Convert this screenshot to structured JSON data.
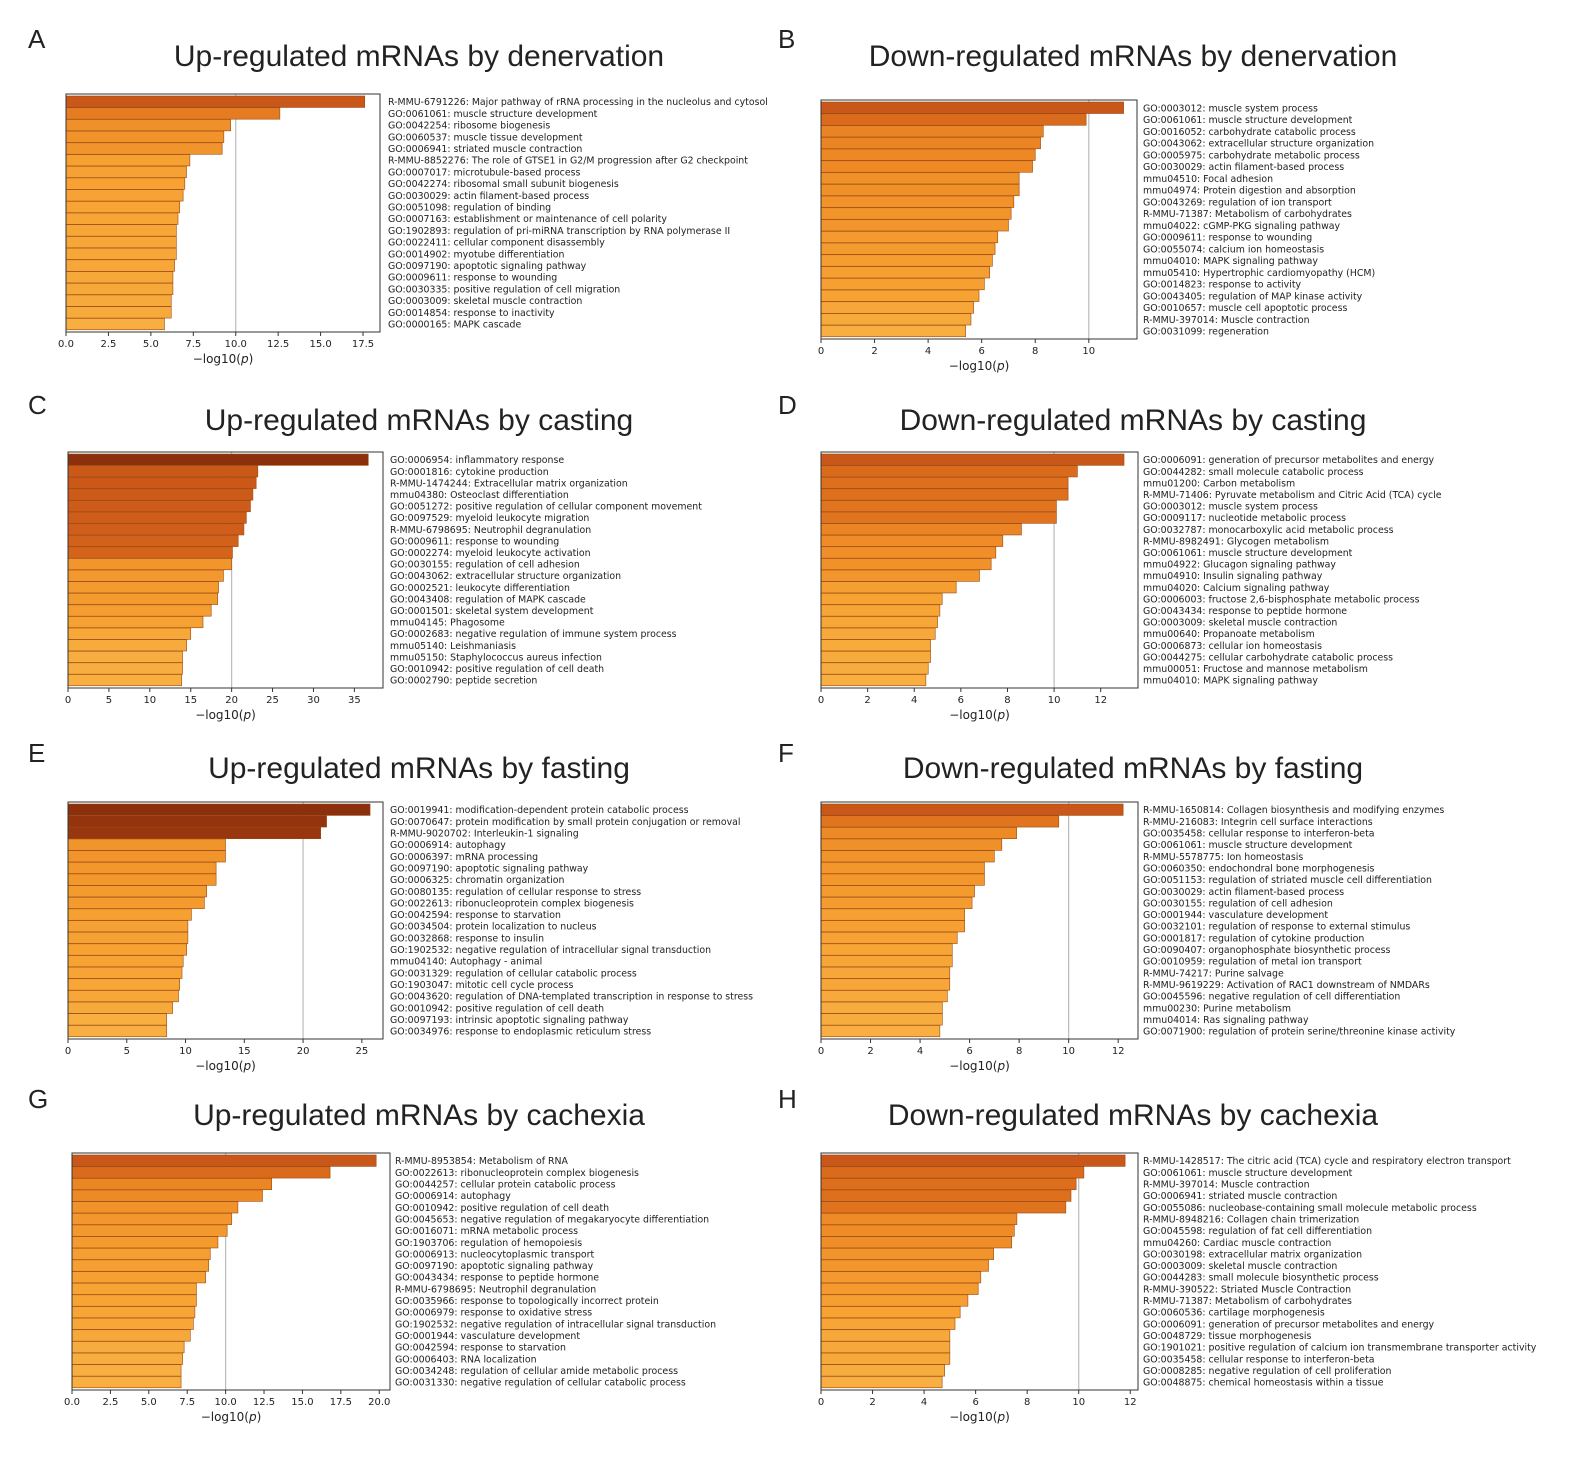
{
  "chart_data": [
    {
      "type": "bar",
      "panel_letter": "A",
      "title": "Up-regulated mRNAs by denervation",
      "xlabel_prefix": "−log10(",
      "xlabel_var": "p",
      "xlabel_suffix": ")",
      "xlim": [
        0,
        18.5
      ],
      "xticks": [
        "0.0",
        "2.5",
        "5.0",
        "7.5",
        "10.0",
        "12.5",
        "15.0",
        "17.5"
      ],
      "xtick_values": [
        0,
        2.5,
        5,
        7.5,
        10,
        12.5,
        15,
        17.5
      ],
      "reference_line": 10,
      "categories": [
        "R-MMU-6791226: Major pathway of rRNA processing in the nucleolus and cytosol",
        "GO:0061061: muscle structure development",
        "GO:0042254: ribosome biogenesis",
        "GO:0060537: muscle tissue development",
        "GO:0006941: striated muscle contraction",
        "R-MMU-8852276: The role of GTSE1 in G2/M progression after G2 checkpoint",
        "GO:0007017: microtubule-based process",
        "GO:0042274: ribosomal small subunit biogenesis",
        "GO:0030029: actin filament-based process",
        "GO:0051098: regulation of binding",
        "GO:0007163: establishment or maintenance of cell polarity",
        "GO:1902893: regulation of pri-miRNA transcription by RNA polymerase II",
        "GO:0022411: cellular component disassembly",
        "GO:0014902: myotube differentiation",
        "GO:0097190: apoptotic signaling pathway",
        "GO:0009611: response to wounding",
        "GO:0030335: positive regulation of cell migration",
        "GO:0003009: skeletal muscle contraction",
        "GO:0014854: response to inactivity",
        "GO:0000165: MAPK cascade"
      ],
      "values": [
        17.6,
        12.6,
        9.7,
        9.3,
        9.2,
        7.3,
        7.1,
        7.0,
        6.9,
        6.7,
        6.6,
        6.5,
        6.5,
        6.5,
        6.4,
        6.3,
        6.3,
        6.2,
        6.2,
        5.8
      ]
    },
    {
      "type": "bar",
      "panel_letter": "B",
      "title": "Down-regulated mRNAs by denervation",
      "xlabel_prefix": "−log10(",
      "xlabel_var": "p",
      "xlabel_suffix": ")",
      "xlim": [
        0,
        11.8
      ],
      "xticks": [
        "0",
        "2",
        "4",
        "6",
        "8",
        "10"
      ],
      "xtick_values": [
        0,
        2,
        4,
        6,
        8,
        10
      ],
      "reference_line": 10,
      "categories": [
        "GO:0003012: muscle system process",
        "GO:0061061: muscle structure development",
        "GO:0016052: carbohydrate catabolic process",
        "GO:0043062: extracellular structure organization",
        "GO:0005975: carbohydrate metabolic process",
        "GO:0030029: actin filament-based process",
        "mmu04510: Focal adhesion",
        "mmu04974: Protein digestion and absorption",
        "GO:0043269: regulation of ion transport",
        "R-MMU-71387: Metabolism of carbohydrates",
        "mmu04022: cGMP-PKG signaling pathway",
        "GO:0009611: response to wounding",
        "GO:0055074: calcium ion homeostasis",
        "mmu04010: MAPK signaling pathway",
        "mmu05410: Hypertrophic cardiomyopathy (HCM)",
        "GO:0014823: response to activity",
        "GO:0043405: regulation of MAP kinase activity",
        "GO:0010657: muscle cell apoptotic process",
        "R-MMU-397014: Muscle contraction",
        "GO:0031099: regeneration"
      ],
      "values": [
        11.3,
        9.9,
        8.3,
        8.2,
        8.0,
        7.9,
        7.4,
        7.4,
        7.2,
        7.1,
        7.0,
        6.6,
        6.5,
        6.4,
        6.3,
        6.1,
        5.9,
        5.7,
        5.6,
        5.4
      ]
    },
    {
      "type": "bar",
      "panel_letter": "C",
      "title": "Up-regulated mRNAs by casting",
      "xlabel_prefix": "−log10(",
      "xlabel_var": "p",
      "xlabel_suffix": ")",
      "xlim": [
        0,
        38.5
      ],
      "xticks": [
        "0",
        "5",
        "10",
        "15",
        "20",
        "25",
        "30",
        "35"
      ],
      "xtick_values": [
        0,
        5,
        10,
        15,
        20,
        25,
        30,
        35
      ],
      "reference_line": 20,
      "categories": [
        "GO:0006954: inflammatory response",
        "GO:0001816: cytokine production",
        "R-MMU-1474244: Extracellular matrix organization",
        "mmu04380: Osteoclast differentiation",
        "GO:0051272: positive regulation of cellular component movement",
        "GO:0097529: myeloid leukocyte migration",
        "R-MMU-6798695: Neutrophil degranulation",
        "GO:0009611: response to wounding",
        "GO:0002274: myeloid leukocyte activation",
        "GO:0030155: regulation of cell adhesion",
        "GO:0043062: extracellular structure organization",
        "GO:0002521: leukocyte differentiation",
        "GO:0043408: regulation of MAPK cascade",
        "GO:0001501: skeletal system development",
        "mmu04145: Phagosome",
        "GO:0002683: negative regulation of immune system process",
        "mmu05140: Leishmaniasis",
        "mmu05150: Staphylococcus aureus infection",
        "GO:0010942: positive regulation of cell death",
        "GO:0002790: peptide secretion"
      ],
      "values": [
        36.7,
        23.2,
        23.0,
        22.6,
        22.3,
        21.8,
        21.5,
        20.8,
        20.1,
        20.0,
        19.0,
        18.4,
        18.3,
        17.5,
        16.5,
        15.0,
        14.5,
        14.0,
        14.0,
        13.9
      ]
    },
    {
      "type": "bar",
      "panel_letter": "D",
      "title": "Down-regulated mRNAs by casting",
      "xlabel_prefix": "−log10(",
      "xlabel_var": "p",
      "xlabel_suffix": ")",
      "xlim": [
        0,
        13.6
      ],
      "xticks": [
        "0",
        "2",
        "4",
        "6",
        "8",
        "10",
        "12"
      ],
      "xtick_values": [
        0,
        2,
        4,
        6,
        8,
        10,
        12
      ],
      "reference_line": 10,
      "categories": [
        "GO:0006091: generation of precursor metabolites and energy",
        "GO:0044282: small molecule catabolic process",
        "mmu01200: Carbon metabolism",
        "R-MMU-71406: Pyruvate metabolism and Citric Acid (TCA) cycle",
        "GO:0003012: muscle system process",
        "GO:0009117: nucleotide metabolic process",
        "GO:0032787: monocarboxylic acid metabolic process",
        "R-MMU-8982491: Glycogen metabolism",
        "GO:0061061: muscle structure development",
        "mmu04922: Glucagon signaling pathway",
        "mmu04910: Insulin signaling pathway",
        "mmu04020: Calcium signaling pathway",
        "GO:0006003: fructose 2,6-bisphosphate metabolic process",
        "GO:0043434: response to peptide hormone",
        "GO:0003009: skeletal muscle contraction",
        "mmu00640: Propanoate metabolism",
        "GO:0006873: cellular ion homeostasis",
        "GO:0044275: cellular carbohydrate catabolic process",
        "mmu00051: Fructose and mannose metabolism",
        "mmu04010: MAPK signaling pathway"
      ],
      "values": [
        13.0,
        11.0,
        10.6,
        10.6,
        10.1,
        10.1,
        8.6,
        7.8,
        7.5,
        7.3,
        6.8,
        5.8,
        5.2,
        5.1,
        5.0,
        4.9,
        4.7,
        4.7,
        4.6,
        4.5
      ]
    },
    {
      "type": "bar",
      "panel_letter": "E",
      "title": "Up-regulated mRNAs by fasting",
      "xlabel_prefix": "−log10(",
      "xlabel_var": "p",
      "xlabel_suffix": ")",
      "xlim": [
        0,
        26.8
      ],
      "xticks": [
        "0",
        "5",
        "10",
        "15",
        "20",
        "25"
      ],
      "xtick_values": [
        0,
        5,
        10,
        15,
        20,
        25
      ],
      "reference_line": 20,
      "categories": [
        "GO:0019941: modification-dependent protein catabolic process",
        "GO:0070647: protein modification by small protein conjugation or removal",
        "R-MMU-9020702: Interleukin-1 signaling",
        "GO:0006914: autophagy",
        "GO:0006397: mRNA processing",
        "GO:0097190: apoptotic signaling pathway",
        "GO:0006325: chromatin organization",
        "GO:0080135: regulation of cellular response to stress",
        "GO:0022613: ribonucleoprotein complex biogenesis",
        "GO:0042594: response to starvation",
        "GO:0034504: protein localization to nucleus",
        "GO:0032868: response to insulin",
        "GO:1902532: negative regulation of intracellular signal transduction",
        "mmu04140: Autophagy - animal",
        "GO:0031329: regulation of cellular catabolic process",
        "GO:1903047: mitotic cell cycle process",
        "GO:0043620: regulation of DNA-templated transcription in response to stress",
        "GO:0010942: positive regulation of cell death",
        "GO:0097193: intrinsic apoptotic signaling pathway",
        "GO:0034976: response to endoplasmic reticulum stress"
      ],
      "values": [
        25.7,
        22.0,
        21.5,
        13.4,
        13.4,
        12.6,
        12.6,
        11.8,
        11.6,
        10.5,
        10.2,
        10.2,
        10.1,
        9.8,
        9.7,
        9.5,
        9.4,
        8.9,
        8.4,
        8.4
      ]
    },
    {
      "type": "bar",
      "panel_letter": "F",
      "title": "Down-regulated mRNAs by fasting",
      "xlabel_prefix": "−log10(",
      "xlabel_var": "p",
      "xlabel_suffix": ")",
      "xlim": [
        0,
        12.8
      ],
      "xticks": [
        "0",
        "2",
        "4",
        "6",
        "8",
        "10",
        "12"
      ],
      "xtick_values": [
        0,
        2,
        4,
        6,
        8,
        10,
        12
      ],
      "reference_line": 10,
      "categories": [
        "R-MMU-1650814: Collagen biosynthesis and modifying enzymes",
        "R-MMU-216083: Integrin cell surface interactions",
        "GO:0035458: cellular response to interferon-beta",
        "GO:0061061: muscle structure development",
        "R-MMU-5578775: Ion homeostasis",
        "GO:0060350: endochondral bone morphogenesis",
        "GO:0051153: regulation of striated muscle cell differentiation",
        "GO:0030029: actin filament-based process",
        "GO:0030155: regulation of cell adhesion",
        "GO:0001944: vasculature development",
        "GO:0032101: regulation of response to external stimulus",
        "GO:0001817: regulation of cytokine production",
        "GO:0090407: organophosphate biosynthetic process",
        "GO:0010959: regulation of metal ion transport",
        "R-MMU-74217: Purine salvage",
        "R-MMU-9619229: Activation of RAC1 downstream of NMDARs",
        "GO:0045596: negative regulation of cell differentiation",
        "mmu00230: Purine metabolism",
        "mmu04014: Ras signaling pathway",
        "GO:0071900: regulation of protein serine/threonine kinase activity"
      ],
      "values": [
        12.2,
        9.6,
        7.9,
        7.3,
        7.0,
        6.6,
        6.6,
        6.2,
        6.1,
        5.8,
        5.8,
        5.5,
        5.3,
        5.3,
        5.2,
        5.2,
        5.1,
        4.9,
        4.9,
        4.8
      ]
    },
    {
      "type": "bar",
      "panel_letter": "G",
      "title": "Up-regulated mRNAs by cachexia",
      "xlabel_prefix": "−log10(",
      "xlabel_var": "p",
      "xlabel_suffix": ")",
      "xlim": [
        0,
        20.7
      ],
      "xticks": [
        "0.0",
        "2.5",
        "5.0",
        "7.5",
        "10.0",
        "12.5",
        "15.0",
        "17.5",
        "20.0"
      ],
      "xtick_values": [
        0,
        2.5,
        5,
        7.5,
        10,
        12.5,
        15,
        17.5,
        20
      ],
      "reference_line": 10,
      "categories": [
        "R-MMU-8953854: Metabolism of RNA",
        "GO:0022613: ribonucleoprotein complex biogenesis",
        "GO:0044257: cellular protein catabolic process",
        "GO:0006914: autophagy",
        "GO:0010942: positive regulation of cell death",
        "GO:0045653: negative regulation of megakaryocyte differentiation",
        "GO:0016071: mRNA metabolic process",
        "GO:1903706: regulation of hemopoiesis",
        "GO:0006913: nucleocytoplasmic transport",
        "GO:0097190: apoptotic signaling pathway",
        "GO:0043434: response to peptide hormone",
        "R-MMU-6798695: Neutrophil degranulation",
        "GO:0035966: response to topologically incorrect protein",
        "GO:0006979: response to oxidative stress",
        "GO:1902532: negative regulation of intracellular signal transduction",
        "GO:0001944: vasculature development",
        "GO:0042594: response to starvation",
        "GO:0006403: RNA localization",
        "GO:0034248: regulation of cellular amide metabolic process",
        "GO:0031330: negative regulation of cellular catabolic process"
      ],
      "values": [
        19.8,
        16.8,
        13.0,
        12.4,
        10.8,
        10.4,
        10.1,
        9.5,
        9.0,
        8.9,
        8.7,
        8.1,
        8.1,
        8.0,
        7.9,
        7.7,
        7.3,
        7.2,
        7.1,
        7.1
      ]
    },
    {
      "type": "bar",
      "panel_letter": "H",
      "title": "Down-regulated mRNAs by cachexia",
      "xlabel_prefix": "−log10(",
      "xlabel_var": "p",
      "xlabel_suffix": ")",
      "xlim": [
        0,
        12.3
      ],
      "xticks": [
        "0",
        "2",
        "4",
        "6",
        "8",
        "10",
        "12"
      ],
      "xtick_values": [
        0,
        2,
        4,
        6,
        8,
        10,
        12
      ],
      "reference_line": 10,
      "categories": [
        "R-MMU-1428517: The citric acid (TCA) cycle and respiratory electron transport",
        "GO:0061061: muscle structure development",
        "R-MMU-397014: Muscle contraction",
        "GO:0006941: striated muscle contraction",
        "GO:0055086: nucleobase-containing small molecule metabolic process",
        "R-MMU-8948216: Collagen chain trimerization",
        "GO:0045598: regulation of fat cell differentiation",
        "mmu04260: Cardiac muscle contraction",
        "GO:0030198: extracellular matrix organization",
        "GO:0003009: skeletal muscle contraction",
        "GO:0044283: small molecule biosynthetic process",
        "R-MMU-390522: Striated Muscle Contraction",
        "R-MMU-71387: Metabolism of carbohydrates",
        "GO:0060536: cartilage morphogenesis",
        "GO:0006091: generation of precursor metabolites and energy",
        "GO:0048729: tissue morphogenesis",
        "GO:1901021: positive regulation of calcium ion transmembrane transporter activity",
        "GO:0035458: cellular response to interferon-beta",
        "GO:0008285: negative regulation of cell proliferation",
        "GO:0048875: chemical homeostasis within a tissue"
      ],
      "values": [
        11.8,
        10.2,
        9.9,
        9.7,
        9.5,
        7.6,
        7.5,
        7.4,
        6.7,
        6.5,
        6.2,
        6.1,
        5.7,
        5.4,
        5.2,
        5.0,
        5.0,
        5.0,
        4.8,
        4.7
      ]
    }
  ],
  "colors": {
    "bar_stops": [
      "#f9cf68",
      "#f7a334",
      "#ee8a26",
      "#dc6c1c",
      "#c35018",
      "#8b2f0c"
    ],
    "bar_edge": "#9a4a12",
    "axis": "#333333",
    "ref_line": "#bbbbbb",
    "text": "#222222"
  }
}
